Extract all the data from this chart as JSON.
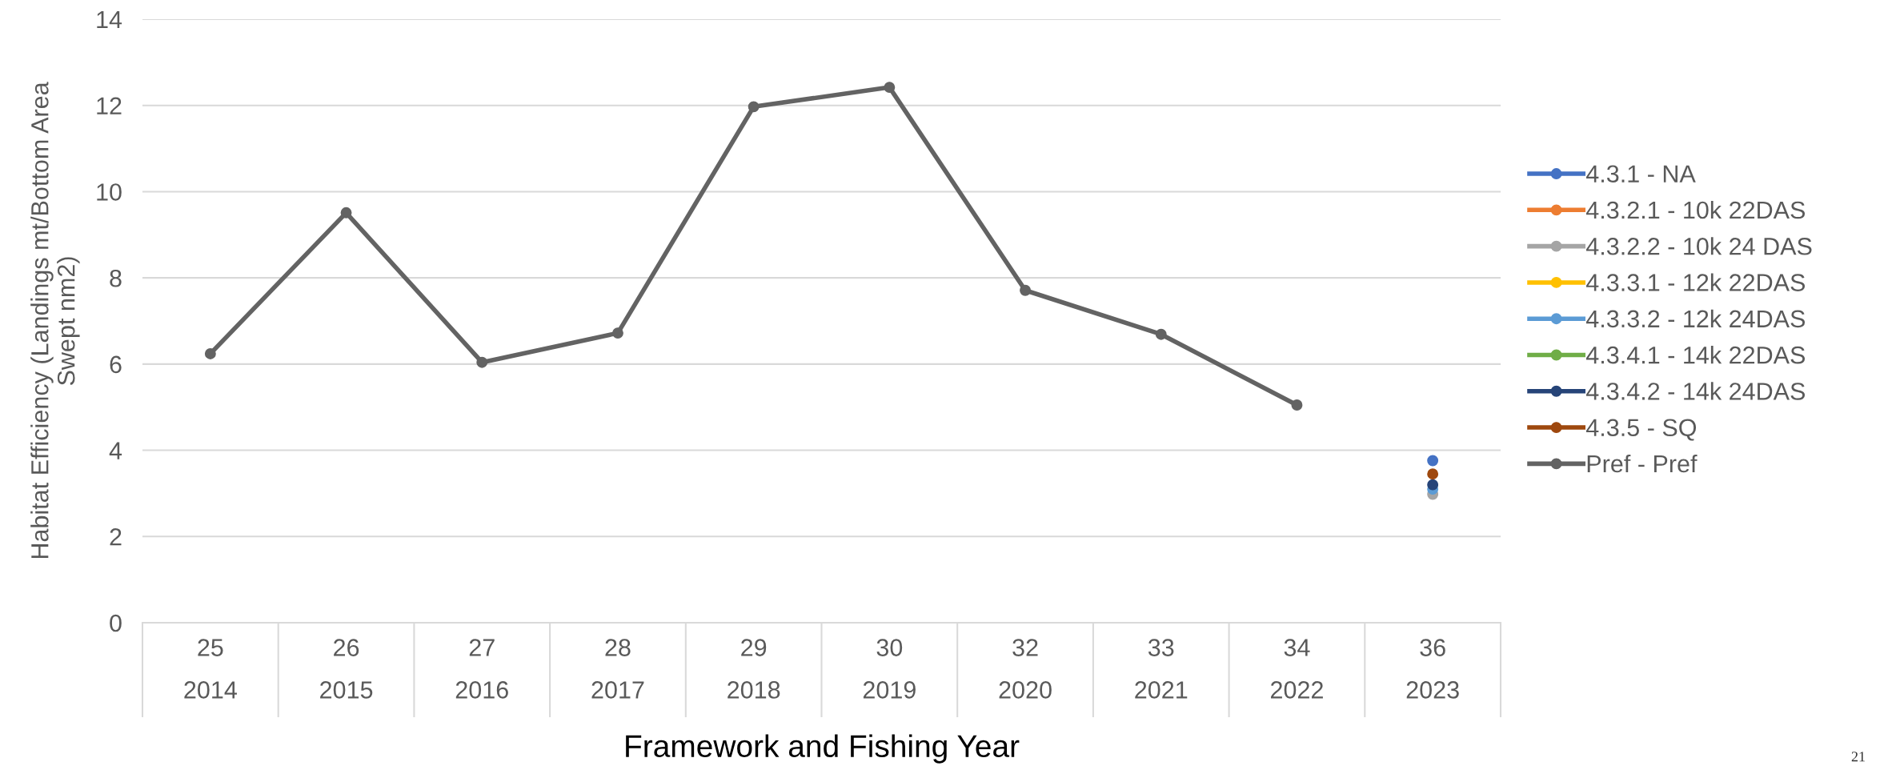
{
  "chart_data": {
    "type": "line",
    "xlabel": "Framework and Fishing Year",
    "ylabel": "Habitat Efficiency (Landings mt/Bottom Area\nSwept nm2)",
    "categories": [
      "25\n2014",
      "26\n2015",
      "27\n2016",
      "28\n2017",
      "29\n2018",
      "30\n2019",
      "32\n2020",
      "33\n2021",
      "34\n2022",
      "36\n2023"
    ],
    "series": [
      {
        "name": "4.3.1 - NA",
        "color": "#4472c4",
        "values": [
          null,
          null,
          null,
          null,
          null,
          null,
          null,
          null,
          null,
          3.76
        ]
      },
      {
        "name": "4.3.2.1 - 10k 22DAS",
        "color": "#ed7d31",
        "values": [
          null,
          null,
          null,
          null,
          null,
          null,
          null,
          null,
          null,
          null
        ]
      },
      {
        "name": "4.3.2.2 - 10k 24 DAS",
        "color": "#a5a5a5",
        "values": [
          null,
          null,
          null,
          null,
          null,
          null,
          null,
          null,
          null,
          2.98
        ]
      },
      {
        "name": "4.3.3.1 - 12k 22DAS",
        "color": "#ffc000",
        "values": [
          null,
          null,
          null,
          null,
          null,
          null,
          null,
          null,
          null,
          null
        ]
      },
      {
        "name": "4.3.3.2 - 12k 24DAS",
        "color": "#5b9bd5",
        "values": [
          null,
          null,
          null,
          null,
          null,
          null,
          null,
          null,
          null,
          3.1
        ]
      },
      {
        "name": "4.3.4.1 - 14k 22DAS",
        "color": "#70ad47",
        "values": [
          null,
          null,
          null,
          null,
          null,
          null,
          null,
          null,
          null,
          null
        ]
      },
      {
        "name": "4.3.4.2 - 14k 24DAS",
        "color": "#264478",
        "values": [
          null,
          null,
          null,
          null,
          null,
          null,
          null,
          null,
          null,
          3.2
        ]
      },
      {
        "name": "4.3.5 - SQ",
        "color": "#9e480e",
        "values": [
          null,
          null,
          null,
          null,
          null,
          null,
          null,
          null,
          null,
          3.45
        ]
      },
      {
        "name": "Pref - Pref",
        "color": "#636363",
        "values": [
          6.24,
          9.51,
          6.04,
          6.72,
          11.97,
          12.42,
          7.71,
          6.69,
          5.05,
          null
        ]
      }
    ],
    "ylim": [
      0,
      14
    ],
    "yticks": [
      0,
      2,
      4,
      6,
      8,
      10,
      12,
      14
    ],
    "grid": "y",
    "legend": "right",
    "marker": "circle",
    "line_style": "solid",
    "annotations": [
      "21"
    ]
  }
}
